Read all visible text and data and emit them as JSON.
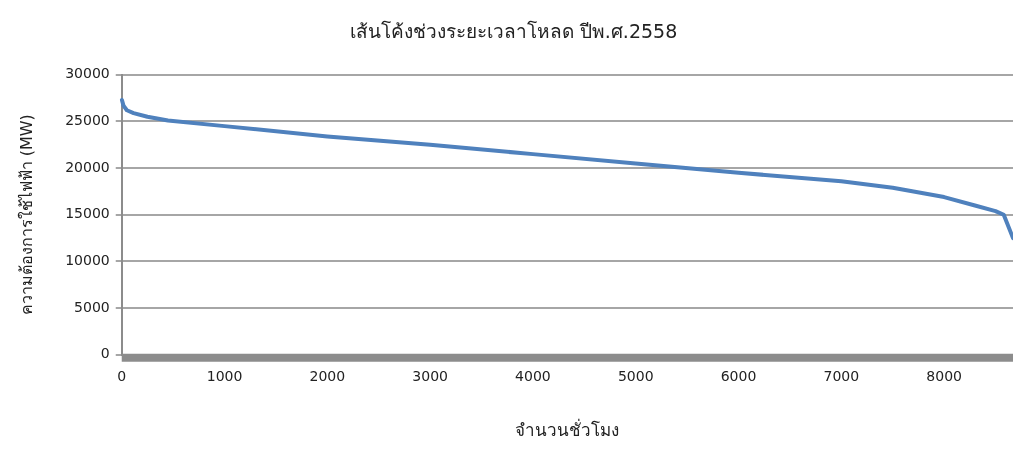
{
  "chart_data": {
    "type": "line",
    "title": "เส้นโค้งช่วงระยะเวลาโหลด ปีพ.ศ.2558",
    "xlabel": "จำนวนชั่วโมง",
    "ylabel": "ความต้องการใช้ไฟฟ้า (MW)",
    "x": [
      2,
      17,
      50,
      115,
      250,
      450,
      1000,
      2000,
      3000,
      4000,
      5000,
      6000,
      7000,
      7500,
      8000,
      8300,
      8500,
      8580,
      8670
    ],
    "series": [
      {
        "color": "#4f81bd",
        "values": [
          27300,
          26700,
          26200,
          25900,
          25500,
          25100,
          24500,
          23400,
          22500,
          21500,
          20500,
          19500,
          18600,
          17900,
          16900,
          16000,
          15400,
          15000,
          12500
        ]
      }
    ],
    "xlim": [
      0,
      8670
    ],
    "xticks": [
      0,
      1000,
      2000,
      3000,
      4000,
      5000,
      6000,
      7000,
      8000
    ],
    "ylim": [
      0,
      30000
    ],
    "yticks": [
      0,
      5000,
      10000,
      15000,
      20000,
      25000,
      30000
    ],
    "grid": "y",
    "legend": false,
    "marker": "none",
    "line_style": "solid"
  }
}
